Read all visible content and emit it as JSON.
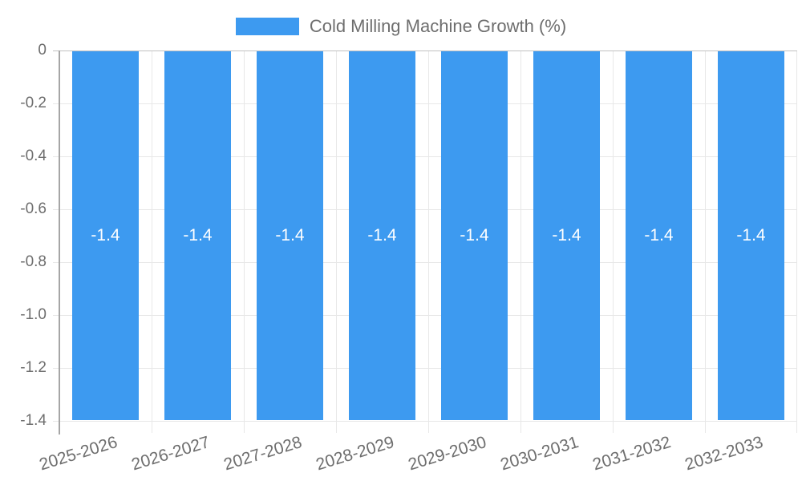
{
  "legend": {
    "label": "Cold Milling Machine Growth (%)"
  },
  "chart_data": {
    "type": "bar",
    "title": "Cold Milling Machine Growth (%)",
    "categories": [
      "2025-2026",
      "2026-2027",
      "2027-2028",
      "2028-2029",
      "2029-2030",
      "2030-2031",
      "2031-2032",
      "2032-2033"
    ],
    "series": [
      {
        "name": "Cold Milling Machine Growth (%)",
        "values": [
          -1.4,
          -1.4,
          -1.4,
          -1.4,
          -1.4,
          -1.4,
          -1.4,
          -1.4
        ]
      }
    ],
    "bar_labels": [
      "-1.4",
      "-1.4",
      "-1.4",
      "-1.4",
      "-1.4",
      "-1.4",
      "-1.4",
      "-1.4"
    ],
    "y_ticks": [
      "0",
      "-0.2",
      "-0.4",
      "-0.6",
      "-0.8",
      "-1.0",
      "-1.2",
      "-1.4"
    ],
    "ylim": [
      -1.4,
      0
    ],
    "xlabel": "",
    "ylabel": "",
    "grid": true,
    "legend_position": "top-center",
    "x_label_rotation_deg": -17,
    "colors": {
      "bar": "#3D9AF0",
      "axis": "#A6A6A6",
      "grid": "#E8E8E8",
      "zero_line": "#C0C0C0",
      "label_text": "#6E6E6E",
      "bar_label_text": "#FFFFFF",
      "background": "#FFFFFF"
    }
  }
}
